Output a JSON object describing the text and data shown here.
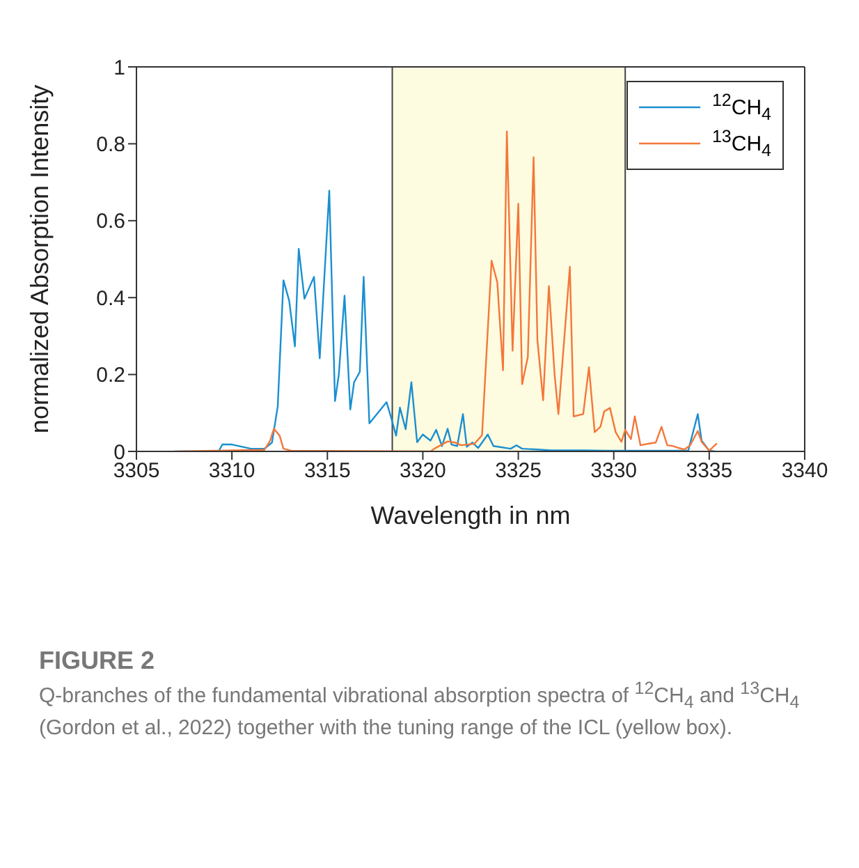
{
  "chart_data": {
    "type": "line",
    "title": "FIGURE 2",
    "xlabel": "Wavelength in nm",
    "ylabel": "normalized Absorption Intensity",
    "xlim": [
      3305,
      3340
    ],
    "xticks": [
      3305,
      3310,
      3315,
      3320,
      3325,
      3330,
      3335,
      3340
    ],
    "ylim": [
      0,
      1
    ],
    "yticks": [
      0,
      0.2,
      0.4,
      0.6,
      0.8,
      1
    ],
    "grid": false,
    "legend": "top right",
    "marker": "none",
    "line_style": "solid",
    "bands": [
      {
        "axis": "x",
        "from": 3318.4,
        "to": 3330.6,
        "color": "#fdfbe0"
      }
    ],
    "annotations": [
      "Q-branches of the fundamental vibrational absorption spectra of $^{12}$CH$_{4}$ and $^{13}$CH$_{4}$ (Gordon et al., 2022) together with the tuning range of the ICL (yellow box)."
    ],
    "series": [
      {
        "name": "$^{12}$CH$_{4}$",
        "color": "#1a8fd0",
        "x": [
          3307,
          3309.3,
          3309.5,
          3310,
          3311,
          3311.7,
          3312.1,
          3312.4,
          3312.7,
          3313,
          3313.3,
          3313.5,
          3313.8,
          3314.3,
          3314.6,
          3315.1,
          3315.4,
          3315.6,
          3315.9,
          3316.2,
          3316.4,
          3316.7,
          3316.9,
          3317.2,
          3318.1,
          3318.3,
          3318.6,
          3318.8,
          3319.1,
          3319.4,
          3319.7,
          3320,
          3320.4,
          3320.7,
          3321,
          3321.3,
          3321.5,
          3321.8,
          3322.1,
          3322.3,
          3322.6,
          3322.9,
          3323.4,
          3323.7,
          3324.6,
          3324.9,
          3325.2,
          3326,
          3326.7,
          3328.4,
          3329.6,
          3333.9,
          3334.4,
          3334.6,
          3335,
          3335.3
        ],
        "values": [
          0,
          0,
          0.018,
          0.018,
          0.007,
          0.007,
          0.023,
          0.117,
          0.445,
          0.392,
          0.273,
          0.527,
          0.397,
          0.454,
          0.242,
          0.678,
          0.131,
          0.2,
          0.405,
          0.109,
          0.18,
          0.207,
          0.454,
          0.073,
          0.128,
          0.095,
          0.041,
          0.114,
          0.058,
          0.18,
          0.024,
          0.044,
          0.028,
          0.056,
          0.014,
          0.059,
          0.018,
          0.014,
          0.097,
          0.012,
          0.023,
          0.009,
          0.044,
          0.014,
          0.007,
          0.016,
          0.007,
          0.005,
          0.003,
          0.003,
          0.002,
          0.002,
          0.097,
          0.028,
          0.002,
          0
        ]
      },
      {
        "name": "$^{13}$CH$_{4}$",
        "color": "#f4773a",
        "x": [
          3307.1,
          3311.7,
          3312,
          3312.2,
          3312.5,
          3312.7,
          3313.1,
          3320.4,
          3320.6,
          3321.3,
          3321.7,
          3322,
          3322.7,
          3323.1,
          3323.6,
          3323.9,
          3324.2,
          3324.4,
          3324.7,
          3325,
          3325.2,
          3325.5,
          3325.8,
          3326,
          3326.3,
          3326.6,
          3326.9,
          3327.1,
          3327.7,
          3327.9,
          3328.4,
          3328.7,
          3329,
          3329.3,
          3329.5,
          3329.8,
          3330.1,
          3330.4,
          3330.6,
          3330.9,
          3331.1,
          3331.4,
          3331.8,
          3332.2,
          3332.5,
          3332.8,
          3333.1,
          3333.4,
          3333.7,
          3334,
          3334.4,
          3334.6,
          3335,
          3335.4
        ],
        "values": [
          0,
          0.004,
          0.028,
          0.059,
          0.041,
          0.007,
          0.002,
          0,
          0.007,
          0.026,
          0.023,
          0.016,
          0.02,
          0.042,
          0.496,
          0.44,
          0.211,
          0.832,
          0.262,
          0.644,
          0.175,
          0.246,
          0.765,
          0.29,
          0.133,
          0.43,
          0.201,
          0.097,
          0.48,
          0.091,
          0.097,
          0.219,
          0.05,
          0.064,
          0.104,
          0.113,
          0.05,
          0.025,
          0.056,
          0.032,
          0.091,
          0.016,
          0.02,
          0.023,
          0.064,
          0.016,
          0.014,
          0.009,
          0.005,
          0.016,
          0.053,
          0.025,
          0.002,
          0.021
        ]
      }
    ]
  }
}
